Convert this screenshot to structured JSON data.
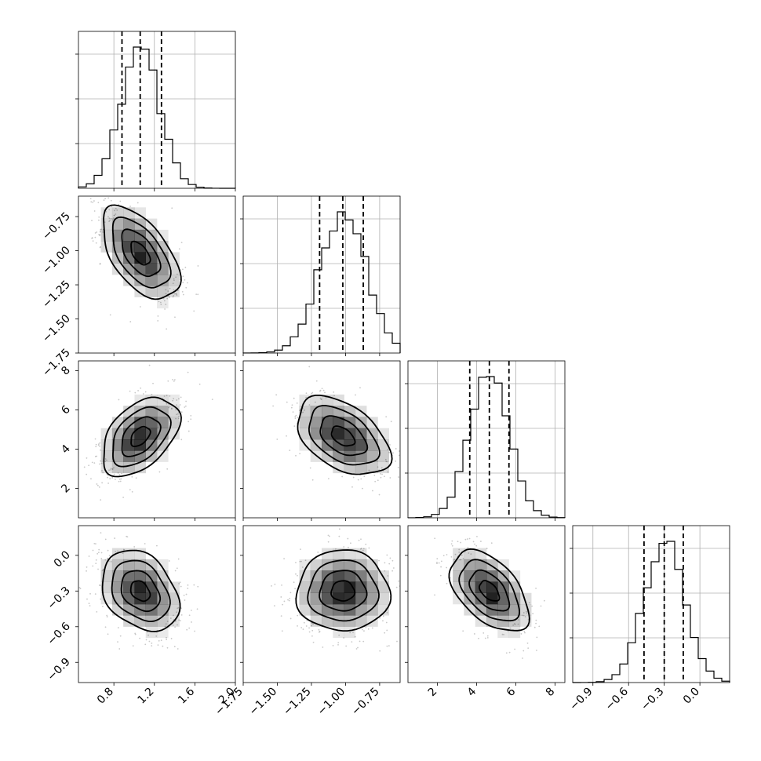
{
  "chart_data": {
    "type": "corner",
    "grid": true,
    "colors": {
      "line": "#000000",
      "scatter": "#888888",
      "density": "#000000",
      "grid": "#b0b0b0"
    },
    "parameters": [
      {
        "range": [
          0.45,
          2.0
        ],
        "ticks": [
          0.8,
          1.2,
          1.6,
          2.0
        ],
        "tick_labels": [
          "0.8",
          "1.2",
          "1.6",
          "2.0"
        ],
        "mean": 1.06,
        "sd": 0.19,
        "quantiles": [
          0.88,
          1.06,
          1.27
        ]
      },
      {
        "range": [
          -1.75,
          -0.6
        ],
        "ticks": [
          -1.75,
          -1.5,
          -1.25,
          -1.0,
          -0.75
        ],
        "tick_labels": [
          "−1.75",
          "−1.50",
          "−1.25",
          "−1.00",
          "−0.75"
        ],
        "mean": -1.02,
        "sd": 0.17,
        "quantiles": [
          -1.19,
          -1.02,
          -0.87
        ]
      },
      {
        "range": [
          0.5,
          8.5
        ],
        "ticks": [
          2,
          4,
          6,
          8
        ],
        "tick_labels": [
          "2",
          "4",
          "6",
          "8"
        ],
        "mean": 4.65,
        "sd": 1.0,
        "quantiles": [
          3.65,
          4.65,
          5.65
        ]
      },
      {
        "range": [
          -1.07,
          0.25
        ],
        "ticks": [
          -0.9,
          -0.6,
          -0.3,
          0.0
        ],
        "tick_labels": [
          "−0.9",
          "−0.6",
          "−0.3",
          "0.0"
        ],
        "mean": -0.3,
        "sd": 0.17,
        "quantiles": [
          -0.47,
          -0.3,
          -0.14
        ]
      }
    ],
    "correlations": [
      {
        "row": 1,
        "col": 0,
        "rho": -0.55
      },
      {
        "row": 2,
        "col": 0,
        "rho": 0.45
      },
      {
        "row": 2,
        "col": 1,
        "rho": -0.45
      },
      {
        "row": 3,
        "col": 0,
        "rho": -0.3
      },
      {
        "row": 3,
        "col": 1,
        "rho": 0.0
      },
      {
        "row": 3,
        "col": 2,
        "rho": -0.5
      }
    ],
    "contour_levels_sigma": [
      0.5,
      1.0,
      1.5,
      2.0
    ],
    "histogram_bins": 20
  }
}
